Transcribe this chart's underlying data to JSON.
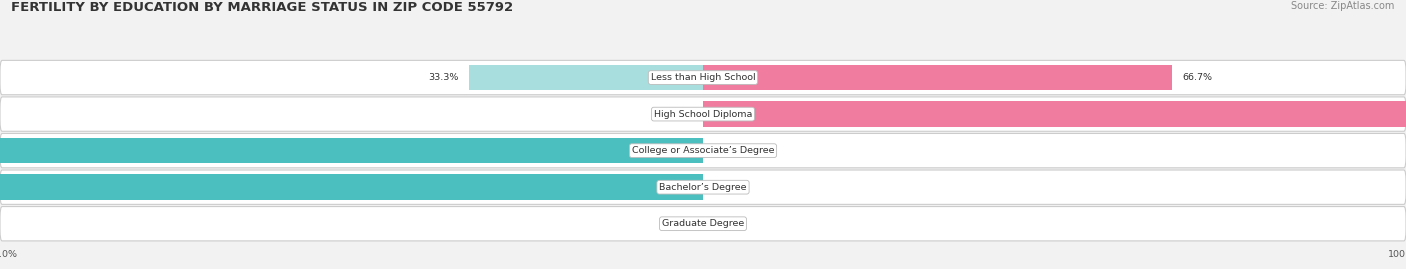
{
  "title": "FERTILITY BY EDUCATION BY MARRIAGE STATUS IN ZIP CODE 55792",
  "source": "Source: ZipAtlas.com",
  "categories": [
    "Less than High School",
    "High School Diploma",
    "College or Associate’s Degree",
    "Bachelor’s Degree",
    "Graduate Degree"
  ],
  "married": [
    33.3,
    0.0,
    100.0,
    100.0,
    0.0
  ],
  "unmarried": [
    66.7,
    100.0,
    0.0,
    0.0,
    0.0
  ],
  "married_color": "#4bbfbf",
  "unmarried_color": "#f07ca0",
  "married_light_color": "#a8dede",
  "unmarried_light_color": "#f5c0d0",
  "bg_color": "#f2f2f2",
  "title_fontsize": 9.5,
  "source_fontsize": 7,
  "label_fontsize": 6.8,
  "value_fontsize": 6.8,
  "legend_fontsize": 7.5
}
